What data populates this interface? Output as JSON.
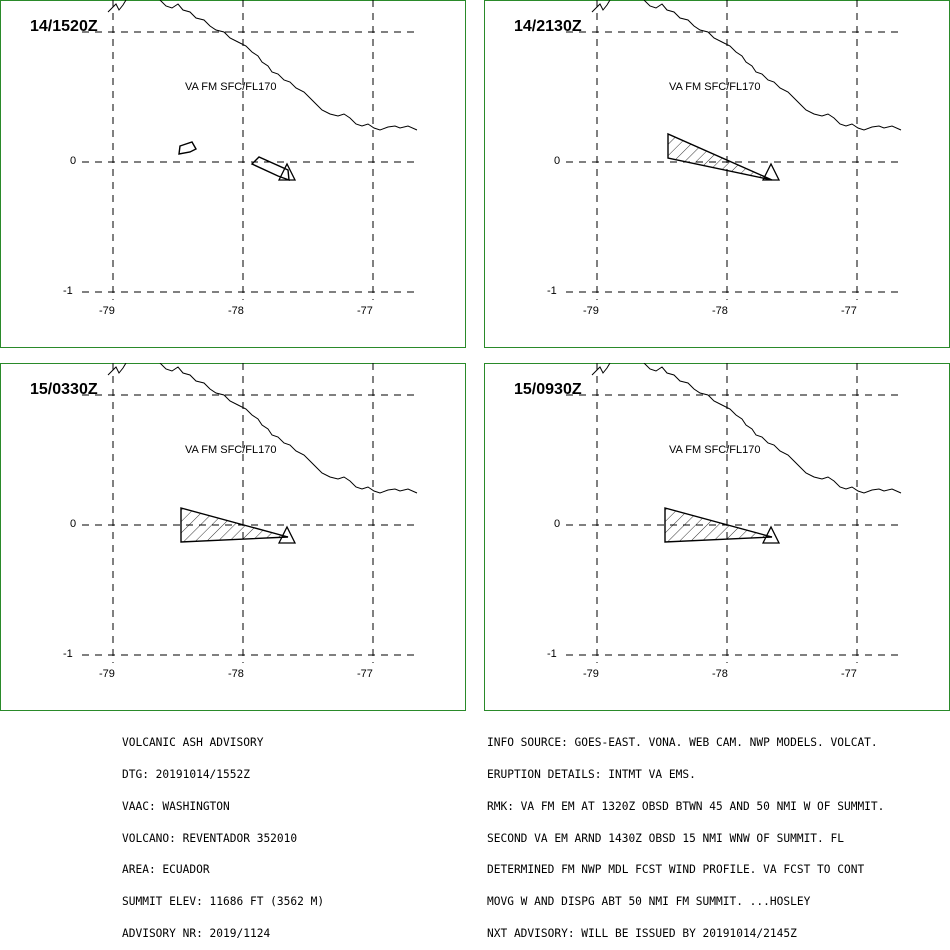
{
  "map": {
    "frame_color": "#2a8a2a",
    "plume_color": "#000000",
    "coast_color": "#000000",
    "lon_ticks": [
      "-79",
      "-78",
      "-77"
    ],
    "lat_ticks": [
      "0",
      "-1"
    ],
    "panels": [
      {
        "time": "14/1520Z",
        "label": "VA FM SFC/FL170",
        "plume": "small-patches"
      },
      {
        "time": "14/2130Z",
        "label": "VA FM SFC/FL170",
        "plume": "wedge-northwest"
      },
      {
        "time": "15/0330Z",
        "label": "VA FM SFC/FL170",
        "plume": "wedge-west"
      },
      {
        "time": "15/0930Z",
        "label": "VA FM SFC/FL170",
        "plume": "wedge-west"
      }
    ]
  },
  "advisory_left": [
    "VOLCANIC ASH ADVISORY",
    "DTG: 20191014/1552Z",
    "VAAC: WASHINGTON",
    "VOLCANO: REVENTADOR 352010",
    "AREA: ECUADOR",
    "SUMMIT ELEV: 11686 FT (3562 M)",
    "ADVISORY NR: 2019/1124"
  ],
  "advisory_right": [
    "INFO SOURCE: GOES-EAST. VONA. WEB CAM. NWP MODELS. VOLCAT.",
    "ERUPTION DETAILS: INTMT VA EMS.",
    "RMK: VA FM EM AT 1320Z OBSD BTWN 45 AND 50 NMI W OF SUMMIT.",
    "SECOND VA EM ARND 1430Z OBSD 15 NMI WNW OF SUMMIT. FL",
    "DETERMINED FM NWP MDL FCST WIND PROFILE. VA FCST TO CONT",
    "MOVG W AND DISPG ABT 50 NMI FM SUMMIT. ...HOSLEY",
    "NXT ADVISORY: WILL BE ISSUED BY 20191014/2145Z"
  ]
}
